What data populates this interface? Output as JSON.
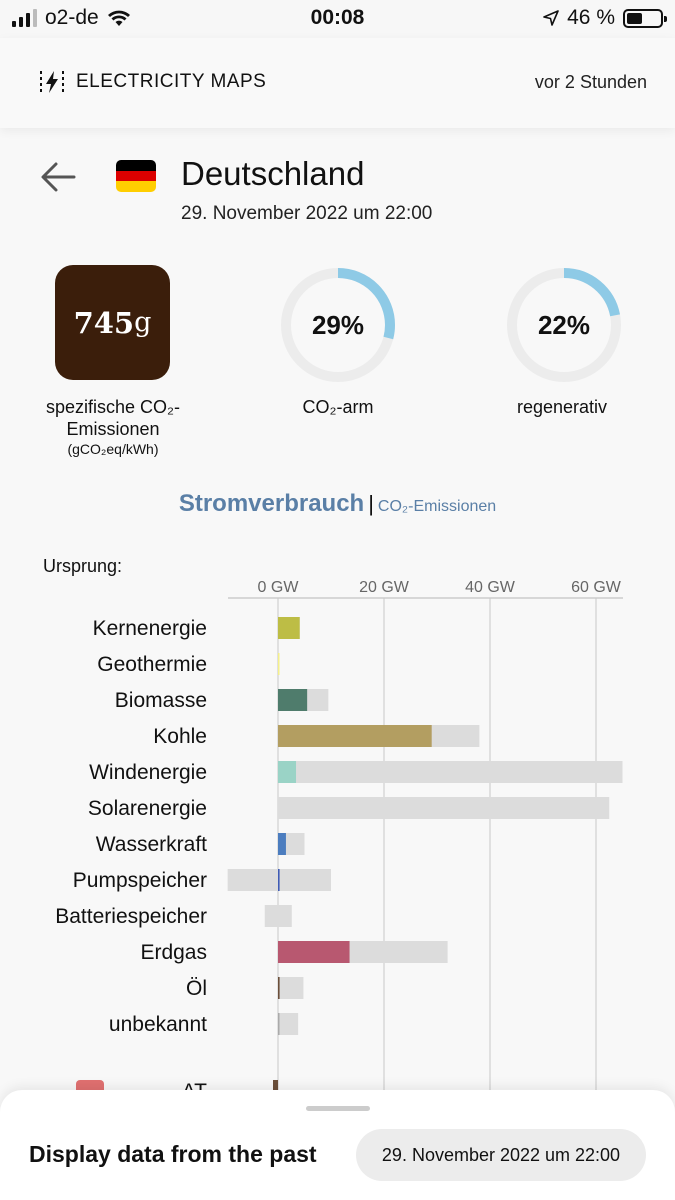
{
  "status_bar": {
    "carrier": "o2-de",
    "time": "00:08",
    "battery": "46 %",
    "battery_level": 0.46,
    "signal_bars": 3
  },
  "header": {
    "logo_text": "ELECTRICITY MAPS",
    "updated": "vor 2 Stunden"
  },
  "zone": {
    "name": "Deutschland",
    "datetime": "29. November 2022 um 22:00",
    "flag_colors": [
      "#000000",
      "#dd0000",
      "#ffce00"
    ]
  },
  "stats": {
    "co2_value": "745",
    "co2_unit": "g",
    "co2_color": "#3b1e0b",
    "co2_label_line1": "spezifische CO₂-",
    "co2_label_line2": "Emissionen",
    "co2_label_unit": "(gCO₂eq/kWh)",
    "low_carbon_percent": 29,
    "low_carbon_text": "29%",
    "low_carbon_label": "CO₂-arm",
    "renewable_percent": 22,
    "renewable_text": "22%",
    "renewable_label": "regenerativ",
    "gauge_color": "#8ecae6",
    "gauge_track": "#ececec"
  },
  "tabs": {
    "active": "Stromverbrauch",
    "separator": "|",
    "inactive": "CO₂-Emissionen"
  },
  "chart_section": {
    "origin_label": "Ursprung:"
  },
  "chart_data": {
    "type": "bar",
    "orientation": "horizontal",
    "x_unit": "GW",
    "xlim": [
      -9.5,
      65
    ],
    "ticks": [
      0,
      20,
      40,
      60
    ],
    "tick_labels": [
      "0 GW",
      "20 GW",
      "40 GW",
      "60 GW"
    ],
    "grid": true,
    "categories": [
      "Kernenergie",
      "Geothermie",
      "Biomasse",
      "Kohle",
      "Windenergie",
      "Solarenergie",
      "Wasserkraft",
      "Pumpspeicher",
      "Batteriespeicher",
      "Erdgas",
      "Öl",
      "unbekannt"
    ],
    "series": [
      {
        "role": "production",
        "values": [
          4.1,
          0.2,
          5.5,
          29.0,
          3.4,
          0.0,
          1.5,
          0.3,
          0.0,
          13.5,
          0.3,
          0.2
        ]
      },
      {
        "role": "capacity_max",
        "values": [
          4.1,
          0.2,
          9.5,
          38.0,
          65.0,
          62.5,
          5.0,
          10.0,
          2.6,
          32.0,
          4.8,
          3.8
        ]
      },
      {
        "role": "capacity_min",
        "values": [
          0,
          0,
          0,
          0,
          0,
          0,
          0,
          -9.5,
          -2.5,
          0,
          0,
          0
        ]
      }
    ],
    "colors": [
      "#bdbd45",
      "#f5f08a",
      "#4f7c6c",
      "#b39e61",
      "#9ad3c6",
      "#f2c94c",
      "#4c7dbf",
      "#3f5bb5",
      "#888888",
      "#b85870",
      "#6b4f3a",
      "#aaaaaa"
    ],
    "capacity_color": "#dcdcdc",
    "partial_row": {
      "label": "AT",
      "flag_color": "#e07070",
      "bar_color": "#6b4f3a"
    }
  },
  "bottom_sheet": {
    "title": "Display data from the past",
    "date": "29. November 2022 um 22:00"
  }
}
